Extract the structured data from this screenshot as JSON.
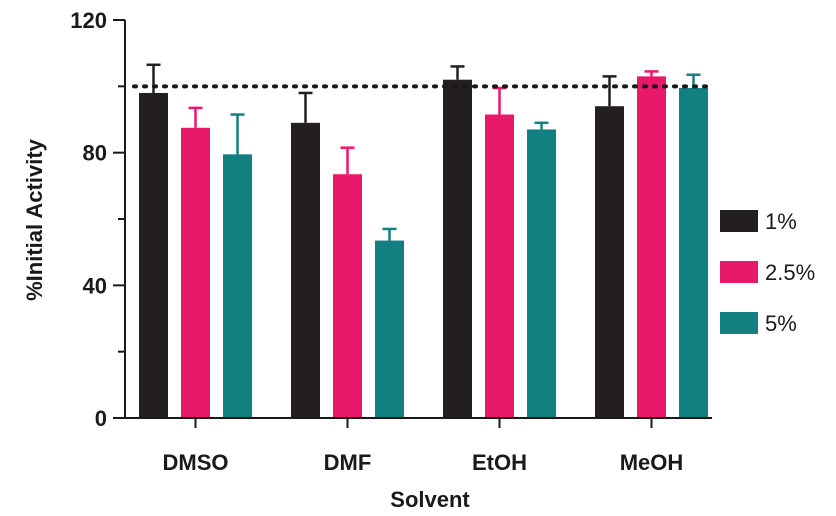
{
  "chart_data": {
    "type": "bar",
    "categories": [
      "DMSO",
      "DMF",
      "EtOH",
      "MeOH"
    ],
    "series": [
      {
        "name": "1%",
        "color": "#231f20",
        "values": [
          98,
          89,
          102,
          94
        ],
        "errors": [
          8.5,
          9,
          4,
          9
        ]
      },
      {
        "name": "2.5%",
        "color": "#e8186a",
        "values": [
          87.5,
          73.5,
          91.5,
          103
        ],
        "errors": [
          6,
          8,
          8,
          1.5
        ]
      },
      {
        "name": "5%",
        "color": "#128080",
        "values": [
          79.5,
          53.5,
          87,
          99.5
        ],
        "errors": [
          12,
          3.5,
          2,
          4
        ]
      }
    ],
    "ylabel": "%Initial Activity",
    "xlabel": "Solvent",
    "ylim": [
      0,
      120
    ],
    "yticks": [
      0,
      40,
      80,
      120
    ],
    "reference_line": 100,
    "grid": false,
    "legend_position": "right"
  }
}
